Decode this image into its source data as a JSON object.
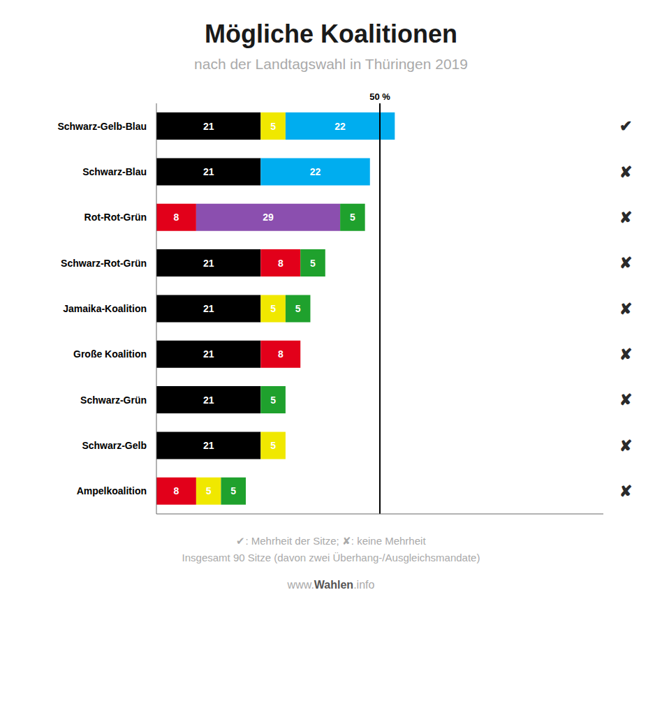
{
  "chart_data": {
    "type": "bar",
    "orientation": "horizontal",
    "stacked": true,
    "data_labels": true,
    "tick_labels": "y",
    "grid": false,
    "title": "Mögliche Koalitionen",
    "subtitle": "nach der Landtagswahl in Thüringen 2019",
    "categories": [
      "Schwarz-Gelb-Blau",
      "Schwarz-Blau",
      "Rot-Rot-Grün",
      "Schwarz-Rot-Grün",
      "Jamaika-Koalition",
      "Große Koalition",
      "Schwarz-Grün",
      "Schwarz-Gelb",
      "Ampelkoalition"
    ],
    "series": [
      {
        "values": [
          21,
          21,
          8,
          21,
          21,
          21,
          21,
          21,
          8
        ],
        "colors": [
          "#000000",
          "#000000",
          "#e2001a",
          "#000000",
          "#000000",
          "#000000",
          "#000000",
          "#000000",
          "#e2001a"
        ]
      },
      {
        "values": [
          5,
          22,
          29,
          8,
          5,
          8,
          5,
          5,
          5
        ],
        "colors": [
          "#f0e800",
          "#00adef",
          "#8b4faf",
          "#e2001a",
          "#f0e800",
          "#e2001a",
          "#1fa12d",
          "#f0e800",
          "#f0e800"
        ]
      },
      {
        "values": [
          22,
          null,
          5,
          5,
          5,
          null,
          null,
          null,
          5
        ],
        "colors": [
          "#00adef",
          null,
          "#1fa12d",
          "#1fa12d",
          "#1fa12d",
          null,
          null,
          null,
          "#1fa12d"
        ]
      }
    ],
    "xlim": [
      0,
      90
    ],
    "reference_line": {
      "value": 45,
      "label": "50 %"
    },
    "row_marks": [
      "✔",
      "✘",
      "✘",
      "✘",
      "✘",
      "✘",
      "✘",
      "✘",
      "✘"
    ],
    "footer": [
      "✔: Mehrheit der Sitze; ✘: keine Mehrheit",
      "Insgesamt 90 Sitze (davon zwei Überhang-/Ausgleichsmandate)"
    ],
    "watermark": [
      "www.",
      "Wahlen",
      ".info"
    ]
  }
}
